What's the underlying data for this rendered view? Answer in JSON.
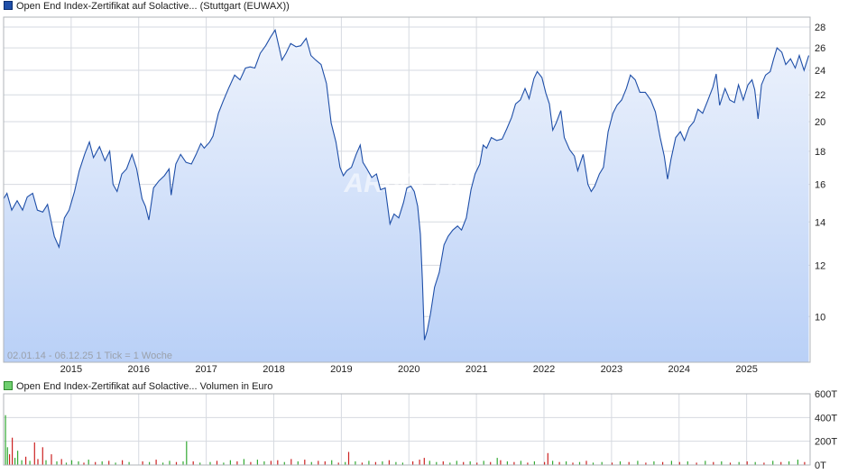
{
  "price_legend": "Open End Index-Zertifikat auf Solactive... (Stuttgart (EUWAX))",
  "volume_legend": "Open End Index-Zertifikat auf Solactive... Volumen in Euro",
  "range_label": "02.01.14 - 06.12.25   1 Tick = 1 Woche",
  "watermark": "ARIVA.DE",
  "colors": {
    "price_line": "#1f4fa8",
    "price_fill_top": "#eef3fc",
    "price_fill_bottom": "#b9d0f7",
    "volume_up": "#33aa33",
    "volume_down": "#cc2222",
    "grid": "#d6dae0"
  },
  "chart_data": [
    {
      "type": "line",
      "name": "price",
      "yscale": "log",
      "ylim": [
        8.5,
        29
      ],
      "yticks": [
        10,
        12,
        14,
        16,
        18,
        20,
        22,
        24,
        26,
        28
      ],
      "xlim": [
        2014.0,
        2025.94
      ],
      "xticks": [
        "2015",
        "2016",
        "2017",
        "2018",
        "2019",
        "2020",
        "2021",
        "2022",
        "2023",
        "2024",
        "2025"
      ],
      "grid": true,
      "points": [
        [
          2014.0,
          15.2
        ],
        [
          2014.05,
          15.5
        ],
        [
          2014.12,
          14.6
        ],
        [
          2014.2,
          15.1
        ],
        [
          2014.28,
          14.6
        ],
        [
          2014.35,
          15.3
        ],
        [
          2014.43,
          15.5
        ],
        [
          2014.5,
          14.6
        ],
        [
          2014.58,
          14.5
        ],
        [
          2014.65,
          14.9
        ],
        [
          2014.75,
          13.3
        ],
        [
          2014.82,
          12.8
        ],
        [
          2014.9,
          14.2
        ],
        [
          2014.97,
          14.6
        ],
        [
          2015.05,
          15.6
        ],
        [
          2015.12,
          16.8
        ],
        [
          2015.2,
          17.8
        ],
        [
          2015.27,
          18.6
        ],
        [
          2015.33,
          17.6
        ],
        [
          2015.42,
          18.3
        ],
        [
          2015.5,
          17.4
        ],
        [
          2015.57,
          18.0
        ],
        [
          2015.62,
          16.0
        ],
        [
          2015.68,
          15.6
        ],
        [
          2015.75,
          16.6
        ],
        [
          2015.82,
          16.9
        ],
        [
          2015.9,
          17.8
        ],
        [
          2015.97,
          16.9
        ],
        [
          2016.05,
          15.2
        ],
        [
          2016.1,
          14.8
        ],
        [
          2016.15,
          14.1
        ],
        [
          2016.22,
          15.8
        ],
        [
          2016.3,
          16.2
        ],
        [
          2016.38,
          16.5
        ],
        [
          2016.45,
          16.9
        ],
        [
          2016.48,
          15.4
        ],
        [
          2016.55,
          17.2
        ],
        [
          2016.62,
          17.8
        ],
        [
          2016.7,
          17.3
        ],
        [
          2016.78,
          17.2
        ],
        [
          2016.85,
          17.8
        ],
        [
          2016.92,
          18.5
        ],
        [
          2016.97,
          18.2
        ],
        [
          2017.05,
          18.6
        ],
        [
          2017.1,
          19.0
        ],
        [
          2017.18,
          20.6
        ],
        [
          2017.25,
          21.5
        ],
        [
          2017.33,
          22.5
        ],
        [
          2017.42,
          23.6
        ],
        [
          2017.5,
          23.2
        ],
        [
          2017.58,
          24.2
        ],
        [
          2017.65,
          24.3
        ],
        [
          2017.72,
          24.2
        ],
        [
          2017.8,
          25.5
        ],
        [
          2017.88,
          26.2
        ],
        [
          2017.95,
          27.0
        ],
        [
          2018.02,
          27.7
        ],
        [
          2018.08,
          26.0
        ],
        [
          2018.12,
          24.9
        ],
        [
          2018.18,
          25.5
        ],
        [
          2018.25,
          26.4
        ],
        [
          2018.33,
          26.1
        ],
        [
          2018.4,
          26.2
        ],
        [
          2018.48,
          26.9
        ],
        [
          2018.55,
          25.3
        ],
        [
          2018.62,
          24.9
        ],
        [
          2018.7,
          24.5
        ],
        [
          2018.78,
          22.9
        ],
        [
          2018.85,
          19.9
        ],
        [
          2018.92,
          18.6
        ],
        [
          2018.98,
          17.0
        ],
        [
          2019.03,
          16.5
        ],
        [
          2019.08,
          16.8
        ],
        [
          2019.15,
          17.0
        ],
        [
          2019.22,
          17.8
        ],
        [
          2019.28,
          18.4
        ],
        [
          2019.32,
          17.3
        ],
        [
          2019.38,
          16.9
        ],
        [
          2019.45,
          16.4
        ],
        [
          2019.52,
          16.6
        ],
        [
          2019.58,
          15.7
        ],
        [
          2019.65,
          15.8
        ],
        [
          2019.72,
          13.9
        ],
        [
          2019.78,
          14.4
        ],
        [
          2019.85,
          14.2
        ],
        [
          2019.92,
          15.0
        ],
        [
          2019.97,
          15.8
        ],
        [
          2020.03,
          15.9
        ],
        [
          2020.08,
          15.6
        ],
        [
          2020.13,
          14.8
        ],
        [
          2020.17,
          13.4
        ],
        [
          2020.2,
          11.4
        ],
        [
          2020.23,
          9.2
        ],
        [
          2020.27,
          9.5
        ],
        [
          2020.32,
          10.1
        ],
        [
          2020.38,
          11.1
        ],
        [
          2020.45,
          11.7
        ],
        [
          2020.52,
          12.9
        ],
        [
          2020.58,
          13.3
        ],
        [
          2020.65,
          13.6
        ],
        [
          2020.72,
          13.8
        ],
        [
          2020.78,
          13.6
        ],
        [
          2020.85,
          14.2
        ],
        [
          2020.92,
          15.7
        ],
        [
          2020.98,
          16.6
        ],
        [
          2021.05,
          17.2
        ],
        [
          2021.1,
          18.4
        ],
        [
          2021.15,
          18.2
        ],
        [
          2021.22,
          18.9
        ],
        [
          2021.3,
          18.7
        ],
        [
          2021.38,
          18.8
        ],
        [
          2021.45,
          19.5
        ],
        [
          2021.52,
          20.3
        ],
        [
          2021.58,
          21.3
        ],
        [
          2021.65,
          21.6
        ],
        [
          2021.72,
          22.5
        ],
        [
          2021.78,
          21.7
        ],
        [
          2021.85,
          23.3
        ],
        [
          2021.9,
          23.9
        ],
        [
          2021.97,
          23.4
        ],
        [
          2022.03,
          22.1
        ],
        [
          2022.08,
          21.3
        ],
        [
          2022.13,
          19.4
        ],
        [
          2022.18,
          19.9
        ],
        [
          2022.25,
          20.8
        ],
        [
          2022.3,
          18.9
        ],
        [
          2022.38,
          18.1
        ],
        [
          2022.45,
          17.7
        ],
        [
          2022.5,
          16.8
        ],
        [
          2022.58,
          17.8
        ],
        [
          2022.65,
          16.0
        ],
        [
          2022.7,
          15.6
        ],
        [
          2022.75,
          15.9
        ],
        [
          2022.82,
          16.6
        ],
        [
          2022.88,
          17.0
        ],
        [
          2022.95,
          19.3
        ],
        [
          2023.02,
          20.6
        ],
        [
          2023.08,
          21.2
        ],
        [
          2023.15,
          21.6
        ],
        [
          2023.22,
          22.5
        ],
        [
          2023.28,
          23.6
        ],
        [
          2023.35,
          23.2
        ],
        [
          2023.42,
          22.2
        ],
        [
          2023.5,
          22.2
        ],
        [
          2023.58,
          21.6
        ],
        [
          2023.65,
          20.7
        ],
        [
          2023.72,
          18.9
        ],
        [
          2023.78,
          17.7
        ],
        [
          2023.83,
          16.3
        ],
        [
          2023.88,
          17.5
        ],
        [
          2023.95,
          18.9
        ],
        [
          2024.02,
          19.3
        ],
        [
          2024.08,
          18.7
        ],
        [
          2024.15,
          19.6
        ],
        [
          2024.22,
          20.0
        ],
        [
          2024.28,
          20.9
        ],
        [
          2024.35,
          20.6
        ],
        [
          2024.42,
          21.5
        ],
        [
          2024.5,
          22.6
        ],
        [
          2024.55,
          23.7
        ],
        [
          2024.6,
          21.2
        ],
        [
          2024.68,
          22.5
        ],
        [
          2024.75,
          21.6
        ],
        [
          2024.82,
          21.4
        ],
        [
          2024.88,
          22.8
        ],
        [
          2024.95,
          21.6
        ],
        [
          2025.02,
          22.8
        ],
        [
          2025.08,
          23.2
        ],
        [
          2025.12,
          22.4
        ],
        [
          2025.17,
          20.2
        ],
        [
          2025.22,
          22.8
        ],
        [
          2025.28,
          23.6
        ],
        [
          2025.35,
          23.9
        ],
        [
          2025.4,
          25.0
        ],
        [
          2025.45,
          26.0
        ],
        [
          2025.52,
          25.6
        ],
        [
          2025.58,
          24.5
        ],
        [
          2025.65,
          25.0
        ],
        [
          2025.72,
          24.2
        ],
        [
          2025.78,
          25.3
        ],
        [
          2025.85,
          24.0
        ],
        [
          2025.92,
          25.3
        ]
      ]
    },
    {
      "type": "bar",
      "name": "volume",
      "unit": "T",
      "ylim": [
        0,
        600
      ],
      "yticks": [
        "600T",
        "400T",
        "200T",
        "0T"
      ],
      "xlim": [
        2014.0,
        2025.94
      ],
      "grid": true,
      "bars": [
        [
          2014.02,
          420,
          "up"
        ],
        [
          2014.05,
          150,
          "up"
        ],
        [
          2014.08,
          90,
          "down"
        ],
        [
          2014.12,
          230,
          "down"
        ],
        [
          2014.16,
          60,
          "up"
        ],
        [
          2014.2,
          120,
          "up"
        ],
        [
          2014.26,
          40,
          "up"
        ],
        [
          2014.32,
          70,
          "down"
        ],
        [
          2014.38,
          35,
          "up"
        ],
        [
          2014.45,
          190,
          "down"
        ],
        [
          2014.5,
          50,
          "down"
        ],
        [
          2014.57,
          150,
          "down"
        ],
        [
          2014.62,
          40,
          "up"
        ],
        [
          2014.7,
          90,
          "down"
        ],
        [
          2014.78,
          30,
          "up"
        ],
        [
          2014.85,
          50,
          "down"
        ],
        [
          2014.92,
          20,
          "up"
        ],
        [
          2015.0,
          40,
          "up"
        ],
        [
          2015.1,
          30,
          "up"
        ],
        [
          2015.18,
          20,
          "down"
        ],
        [
          2015.25,
          45,
          "up"
        ],
        [
          2015.35,
          25,
          "down"
        ],
        [
          2015.45,
          30,
          "up"
        ],
        [
          2015.55,
          35,
          "down"
        ],
        [
          2015.65,
          20,
          "up"
        ],
        [
          2015.75,
          40,
          "down"
        ],
        [
          2015.85,
          25,
          "up"
        ],
        [
          2016.05,
          30,
          "down"
        ],
        [
          2016.15,
          25,
          "up"
        ],
        [
          2016.25,
          45,
          "down"
        ],
        [
          2016.35,
          20,
          "up"
        ],
        [
          2016.45,
          35,
          "up"
        ],
        [
          2016.55,
          25,
          "down"
        ],
        [
          2016.65,
          30,
          "up"
        ],
        [
          2016.7,
          200,
          "up"
        ],
        [
          2016.8,
          30,
          "down"
        ],
        [
          2016.9,
          20,
          "up"
        ],
        [
          2017.05,
          25,
          "up"
        ],
        [
          2017.15,
          35,
          "down"
        ],
        [
          2017.25,
          20,
          "up"
        ],
        [
          2017.35,
          40,
          "up"
        ],
        [
          2017.45,
          30,
          "down"
        ],
        [
          2017.55,
          50,
          "up"
        ],
        [
          2017.65,
          25,
          "down"
        ],
        [
          2017.75,
          45,
          "up"
        ],
        [
          2017.85,
          30,
          "up"
        ],
        [
          2017.95,
          35,
          "down"
        ],
        [
          2018.05,
          40,
          "down"
        ],
        [
          2018.15,
          25,
          "up"
        ],
        [
          2018.25,
          50,
          "down"
        ],
        [
          2018.35,
          30,
          "up"
        ],
        [
          2018.45,
          45,
          "down"
        ],
        [
          2018.55,
          25,
          "up"
        ],
        [
          2018.65,
          35,
          "down"
        ],
        [
          2018.75,
          30,
          "down"
        ],
        [
          2018.85,
          40,
          "up"
        ],
        [
          2018.95,
          20,
          "down"
        ],
        [
          2019.05,
          25,
          "up"
        ],
        [
          2019.1,
          110,
          "down"
        ],
        [
          2019.2,
          30,
          "up"
        ],
        [
          2019.3,
          20,
          "down"
        ],
        [
          2019.4,
          35,
          "up"
        ],
        [
          2019.5,
          25,
          "down"
        ],
        [
          2019.6,
          30,
          "up"
        ],
        [
          2019.7,
          40,
          "down"
        ],
        [
          2019.8,
          25,
          "up"
        ],
        [
          2019.9,
          20,
          "up"
        ],
        [
          2020.05,
          30,
          "down"
        ],
        [
          2020.15,
          45,
          "down"
        ],
        [
          2020.22,
          60,
          "down"
        ],
        [
          2020.3,
          35,
          "up"
        ],
        [
          2020.4,
          25,
          "up"
        ],
        [
          2020.5,
          30,
          "down"
        ],
        [
          2020.6,
          20,
          "up"
        ],
        [
          2020.7,
          35,
          "up"
        ],
        [
          2020.8,
          25,
          "down"
        ],
        [
          2020.9,
          30,
          "up"
        ],
        [
          2021.0,
          20,
          "down"
        ],
        [
          2021.1,
          35,
          "up"
        ],
        [
          2021.2,
          25,
          "down"
        ],
        [
          2021.3,
          60,
          "up"
        ],
        [
          2021.35,
          40,
          "down"
        ],
        [
          2021.45,
          30,
          "up"
        ],
        [
          2021.55,
          25,
          "down"
        ],
        [
          2021.65,
          35,
          "up"
        ],
        [
          2021.75,
          20,
          "down"
        ],
        [
          2021.85,
          30,
          "up"
        ],
        [
          2022.0,
          25,
          "down"
        ],
        [
          2022.05,
          100,
          "down"
        ],
        [
          2022.12,
          35,
          "up"
        ],
        [
          2022.22,
          25,
          "down"
        ],
        [
          2022.32,
          30,
          "up"
        ],
        [
          2022.42,
          20,
          "down"
        ],
        [
          2022.52,
          25,
          "up"
        ],
        [
          2022.62,
          35,
          "down"
        ],
        [
          2022.72,
          20,
          "up"
        ],
        [
          2022.85,
          25,
          "up"
        ],
        [
          2023.0,
          20,
          "down"
        ],
        [
          2023.12,
          30,
          "up"
        ],
        [
          2023.25,
          25,
          "down"
        ],
        [
          2023.38,
          35,
          "up"
        ],
        [
          2023.5,
          20,
          "down"
        ],
        [
          2023.62,
          30,
          "up"
        ],
        [
          2023.75,
          25,
          "down"
        ],
        [
          2023.88,
          35,
          "up"
        ],
        [
          2024.0,
          25,
          "down"
        ],
        [
          2024.12,
          30,
          "up"
        ],
        [
          2024.25,
          20,
          "down"
        ],
        [
          2024.38,
          35,
          "up"
        ],
        [
          2024.5,
          25,
          "down"
        ],
        [
          2024.62,
          30,
          "up"
        ],
        [
          2024.75,
          20,
          "down"
        ],
        [
          2024.88,
          25,
          "up"
        ],
        [
          2025.0,
          30,
          "down"
        ],
        [
          2025.12,
          25,
          "up"
        ],
        [
          2025.25,
          20,
          "down"
        ],
        [
          2025.38,
          35,
          "up"
        ],
        [
          2025.5,
          25,
          "down"
        ],
        [
          2025.62,
          30,
          "up"
        ],
        [
          2025.75,
          45,
          "up"
        ],
        [
          2025.85,
          25,
          "down"
        ]
      ]
    }
  ]
}
